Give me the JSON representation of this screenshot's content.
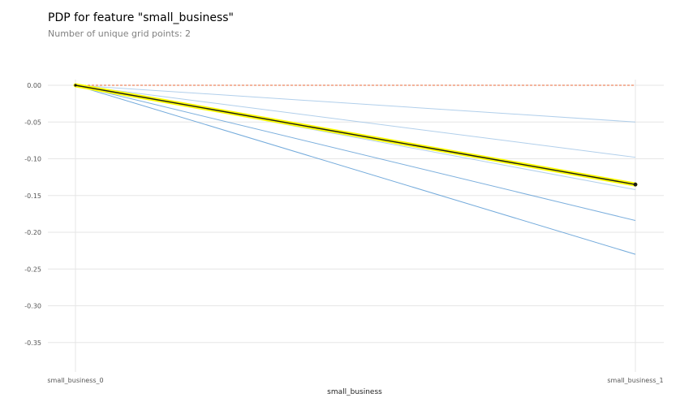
{
  "header": {
    "title": "PDP for feature \"small_business\"",
    "subtitle": "Number of unique grid points: 2"
  },
  "chart_data": {
    "type": "line",
    "title": "PDP for feature \"small_business\"",
    "subtitle": "Number of unique grid points: 2",
    "xlabel": "small_business",
    "ylabel": "",
    "categories": [
      "small_business_0",
      "small_business_1"
    ],
    "ylim": [
      -0.39,
      0.0
    ],
    "yticks": [
      0.0,
      -0.05,
      -0.1,
      -0.15,
      -0.2,
      -0.25,
      -0.3,
      -0.35
    ],
    "ytick_labels": [
      "0.00",
      "-0.05",
      "-0.10",
      "-0.15",
      "-0.20",
      "-0.25",
      "-0.30",
      "-0.35"
    ],
    "grid": true,
    "series": [
      {
        "values": [
          0.0,
          -0.23
        ],
        "color": "#5b9bd5",
        "opacity": 0.85
      },
      {
        "values": [
          0.0,
          -0.184
        ],
        "color": "#5b9bd5",
        "opacity": 0.8
      },
      {
        "values": [
          0.0,
          -0.142
        ],
        "color": "#9ec3e6",
        "opacity": 0.8
      },
      {
        "values": [
          0.0,
          -0.098
        ],
        "color": "#9ec3e6",
        "opacity": 0.8
      },
      {
        "values": [
          0.0,
          -0.05
        ],
        "color": "#9ec3e6",
        "opacity": 0.8
      },
      {
        "values": [
          0.0,
          -0.135
        ],
        "color": "#1a1a1a",
        "opacity": 1,
        "role": "average",
        "highlight": "#ffff00"
      }
    ],
    "baseline": {
      "value": 0.0,
      "color": "#e8683a",
      "dashed": true
    },
    "colors": {
      "grid": "#e6e6e6",
      "ice_dark": "#5b9bd5",
      "ice_light": "#9ec3e6",
      "average": "#1a1a1a",
      "average_highlight": "#ffff00",
      "baseline": "#e8683a"
    }
  }
}
